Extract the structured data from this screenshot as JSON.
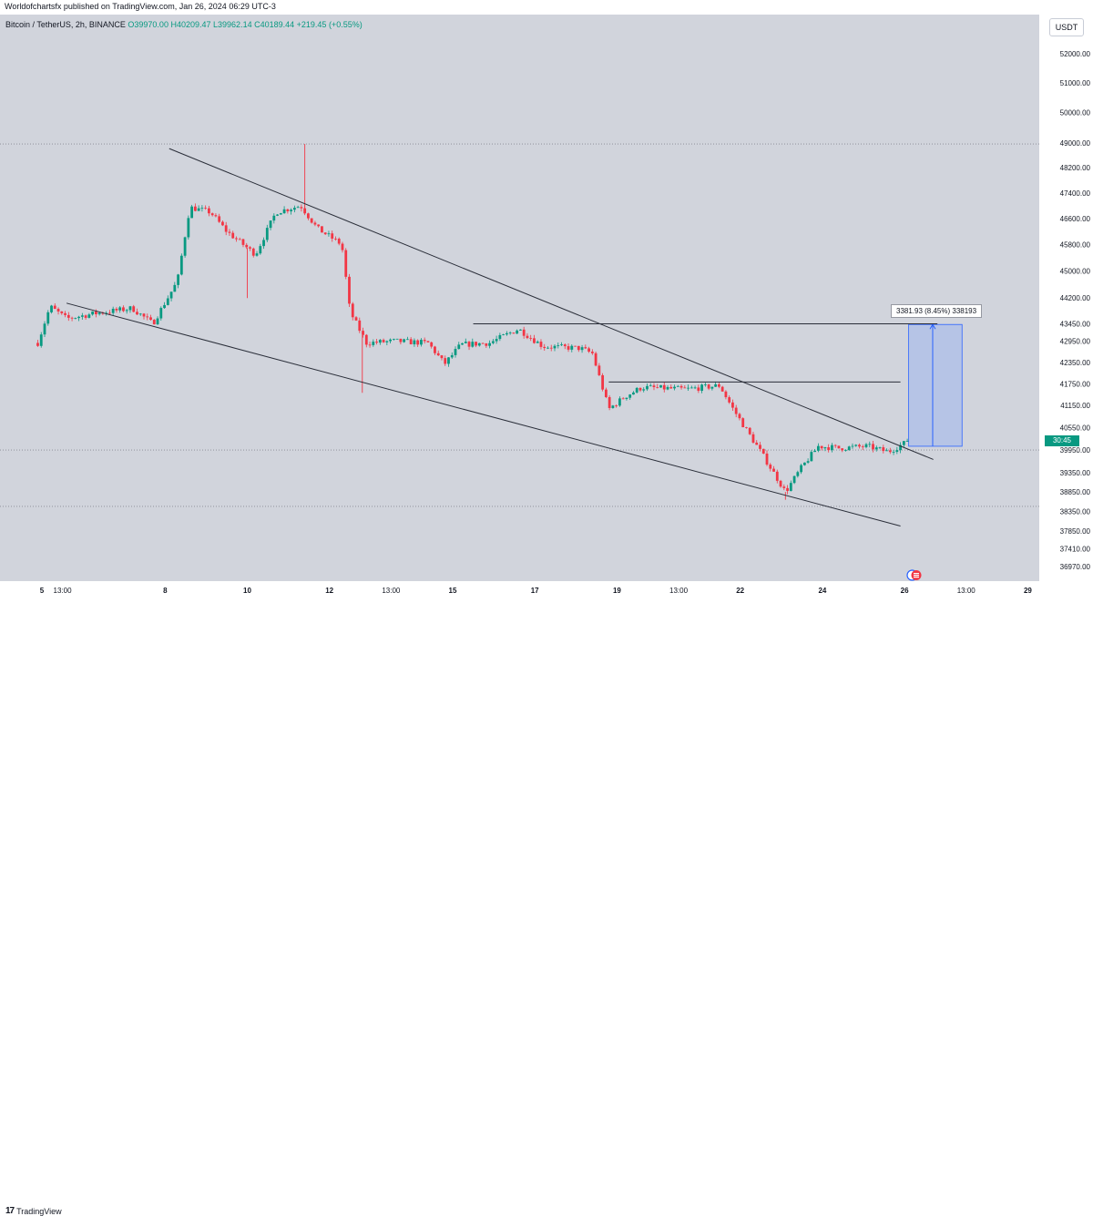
{
  "publisher": "Worldofchartsfx published on TradingView.com, Jan 26, 2024 06:29 UTC-3",
  "symbol": {
    "name": "Bitcoin / TetherUS, 2h, BINANCE",
    "o": "O39970.00",
    "h": "H40209.47",
    "l": "L39962.14",
    "c": "C40189.44",
    "change": "+219.45 (+0.55%)"
  },
  "currency_button": "USDT",
  "measure_label": "3381.93 (8.45%) 338193",
  "countdown": "30:45",
  "footer_logo_text": "TradingView",
  "colors": {
    "up": "#089981",
    "down": "#f23645",
    "background": "#d1d4dc",
    "measure_fill": "#b2c1e8",
    "measure_line": "#2962ff"
  },
  "chart_data": {
    "type": "candlestick",
    "symbol": "BTCUSDT",
    "timeframe": "2h",
    "y_ticks": [
      "52000.00",
      "51000.00",
      "50000.00",
      "49000.00",
      "48200.00",
      "47400.00",
      "46600.00",
      "45800.00",
      "45000.00",
      "44200.00",
      "43450.00",
      "42950.00",
      "42350.00",
      "41750.00",
      "41150.00",
      "40550.00",
      "39950.00",
      "39350.00",
      "38850.00",
      "38350.00",
      "37850.00",
      "37410.00",
      "36970.00"
    ],
    "x_ticks": [
      "5",
      "13:00",
      "8",
      "10",
      "12",
      "13:00",
      "15",
      "17",
      "19",
      "13:00",
      "22",
      "24",
      "26",
      "13:00",
      "29"
    ],
    "price_axis": "log",
    "grid": false,
    "price_path_anchors": [
      {
        "day": 4.9,
        "price": 42900
      },
      {
        "day": 5.2,
        "price": 43950
      },
      {
        "day": 5.6,
        "price": 43600
      },
      {
        "day": 6.3,
        "price": 43750
      },
      {
        "day": 7.2,
        "price": 43900
      },
      {
        "day": 7.7,
        "price": 43450
      },
      {
        "day": 8.3,
        "price": 44700
      },
      {
        "day": 8.6,
        "price": 46950
      },
      {
        "day": 9.1,
        "price": 46800
      },
      {
        "day": 9.5,
        "price": 46200
      },
      {
        "day": 10.2,
        "price": 45500
      },
      {
        "day": 10.7,
        "price": 46800
      },
      {
        "day": 11.3,
        "price": 47000
      },
      {
        "day": 11.7,
        "price": 46300
      },
      {
        "day": 12.3,
        "price": 45800
      },
      {
        "day": 12.5,
        "price": 43800
      },
      {
        "day": 12.9,
        "price": 42900
      },
      {
        "day": 13.6,
        "price": 42950
      },
      {
        "day": 14.4,
        "price": 42900
      },
      {
        "day": 14.8,
        "price": 42300
      },
      {
        "day": 15.2,
        "price": 42850
      },
      {
        "day": 15.9,
        "price": 42900
      },
      {
        "day": 16.6,
        "price": 43300
      },
      {
        "day": 17.2,
        "price": 42800
      },
      {
        "day": 18.1,
        "price": 42750
      },
      {
        "day": 18.4,
        "price": 42600
      },
      {
        "day": 18.8,
        "price": 41050
      },
      {
        "day": 19.2,
        "price": 41400
      },
      {
        "day": 19.6,
        "price": 41650
      },
      {
        "day": 20.7,
        "price": 41600
      },
      {
        "day": 21.5,
        "price": 41700
      },
      {
        "day": 21.8,
        "price": 41100
      },
      {
        "day": 22.2,
        "price": 40400
      },
      {
        "day": 22.5,
        "price": 39900
      },
      {
        "day": 23.1,
        "price": 38850
      },
      {
        "day": 23.5,
        "price": 39500
      },
      {
        "day": 23.9,
        "price": 40050
      },
      {
        "day": 24.4,
        "price": 40000
      },
      {
        "day": 25.1,
        "price": 40050
      },
      {
        "day": 25.6,
        "price": 39900
      },
      {
        "day": 26.1,
        "price": 40190
      }
    ],
    "wicks": [
      {
        "day": 11.4,
        "high": 48970
      },
      {
        "day": 10.0,
        "low": 44200
      },
      {
        "day": 12.8,
        "low": 41500
      },
      {
        "day": 23.1,
        "low": 38650
      }
    ],
    "last_price": 40189.44,
    "drawings": {
      "upper_trendline": [
        {
          "day": 8.1,
          "price": 48820
        },
        {
          "day": 26.7,
          "price": 39700
        }
      ],
      "lower_trendline": [
        {
          "day": 5.6,
          "price": 44050
        },
        {
          "day": 25.9,
          "price": 37980
        }
      ],
      "horizontal_1": {
        "price": 43450,
        "from_day": 15.5,
        "to_day": 26.8
      },
      "horizontal_2": {
        "price": 41800,
        "from_day": 18.8,
        "to_day": 25.9
      },
      "dotted_levels": [
        48970,
        39950,
        38480
      ],
      "measure_box": {
        "from_day": 26.1,
        "to_day": 27.4,
        "price_from": 40050,
        "price_to": 43430
      }
    }
  }
}
